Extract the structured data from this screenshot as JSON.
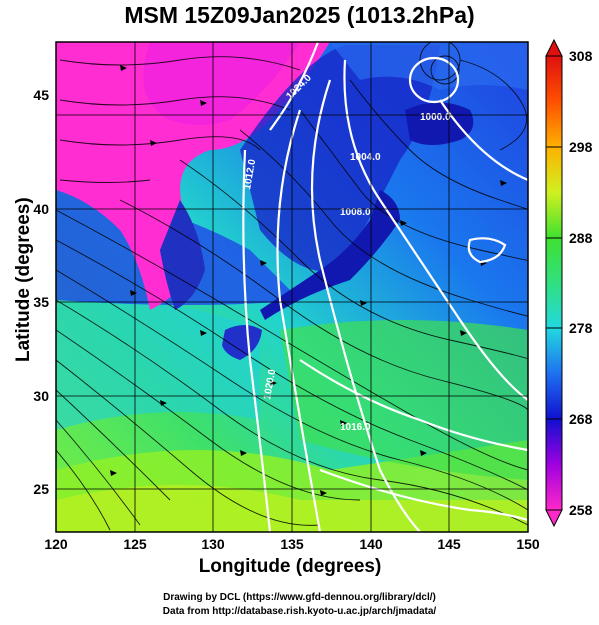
{
  "title": "MSM 15Z09Jan2025 (1013.2hPa)",
  "x_axis": {
    "label": "Longitude (degrees)",
    "ticks": [
      "120",
      "125",
      "130",
      "135",
      "140",
      "145",
      "150"
    ]
  },
  "y_axis": {
    "label": "Latitude  (degrees)",
    "ticks": [
      "25",
      "30",
      "35",
      "40",
      "45"
    ]
  },
  "colorbar": {
    "ticks": [
      "308",
      "298",
      "288",
      "278",
      "268",
      "258"
    ]
  },
  "credits": {
    "line1": "Drawing by DCL (https://www.gfd-dennou.org/library/dcl/)",
    "line2": "Data from http://database.rish.kyoto-u.ac.jp/arch/jmadata/"
  },
  "contour_labels": [
    "1012.0",
    "1008.0",
    "1004.0",
    "1000.0",
    "1016.0",
    "1020.0",
    "1024.0"
  ],
  "colors": {
    "cold_magenta": "#ff2dd2",
    "mid_blue": "#2840e0",
    "cyan": "#26d8d8",
    "green": "#4ae040",
    "yellow_green": "#b8f020",
    "contour": "#ffffff",
    "streamline": "#000000"
  },
  "chart_data": {
    "type": "heatmap",
    "field": "temperature at 1013.2 hPa (K) with wind streamlines and pressure contours",
    "xlim": [
      120,
      150
    ],
    "ylim": [
      22.5,
      48
    ],
    "color_range": [
      258,
      308
    ]
  }
}
